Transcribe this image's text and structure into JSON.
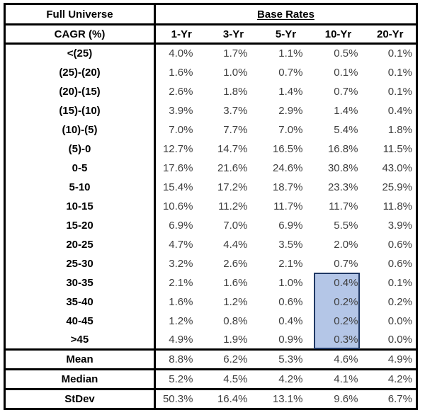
{
  "table": {
    "corner_title": "Full Universe",
    "group_header": "Base Rates",
    "row_header": "CAGR (%)",
    "col_headers": [
      "1-Yr",
      "3-Yr",
      "5-Yr",
      "10-Yr",
      "20-Yr"
    ],
    "rows": [
      {
        "label": "<(25)",
        "values": [
          "4.0%",
          "1.7%",
          "1.1%",
          "0.5%",
          "0.1%"
        ]
      },
      {
        "label": "(25)-(20)",
        "values": [
          "1.6%",
          "1.0%",
          "0.7%",
          "0.1%",
          "0.1%"
        ]
      },
      {
        "label": "(20)-(15)",
        "values": [
          "2.6%",
          "1.8%",
          "1.4%",
          "0.7%",
          "0.1%"
        ]
      },
      {
        "label": "(15)-(10)",
        "values": [
          "3.9%",
          "3.7%",
          "2.9%",
          "1.4%",
          "0.4%"
        ]
      },
      {
        "label": "(10)-(5)",
        "values": [
          "7.0%",
          "7.7%",
          "7.0%",
          "5.4%",
          "1.8%"
        ]
      },
      {
        "label": "(5)-0",
        "values": [
          "12.7%",
          "14.7%",
          "16.5%",
          "16.8%",
          "11.5%"
        ]
      },
      {
        "label": "0-5",
        "values": [
          "17.6%",
          "21.6%",
          "24.6%",
          "30.8%",
          "43.0%"
        ]
      },
      {
        "label": "5-10",
        "values": [
          "15.4%",
          "17.2%",
          "18.7%",
          "23.3%",
          "25.9%"
        ]
      },
      {
        "label": "10-15",
        "values": [
          "10.6%",
          "11.2%",
          "11.7%",
          "11.7%",
          "11.8%"
        ]
      },
      {
        "label": "15-20",
        "values": [
          "6.9%",
          "7.0%",
          "6.9%",
          "5.5%",
          "3.9%"
        ]
      },
      {
        "label": "20-25",
        "values": [
          "4.7%",
          "4.4%",
          "3.5%",
          "2.0%",
          "0.6%"
        ]
      },
      {
        "label": "25-30",
        "values": [
          "3.2%",
          "2.6%",
          "2.1%",
          "0.7%",
          "0.6%"
        ]
      },
      {
        "label": "30-35",
        "values": [
          "2.1%",
          "1.6%",
          "1.0%",
          "0.4%",
          "0.1%"
        ]
      },
      {
        "label": "35-40",
        "values": [
          "1.6%",
          "1.2%",
          "0.6%",
          "0.2%",
          "0.2%"
        ]
      },
      {
        "label": "40-45",
        "values": [
          "1.2%",
          "0.8%",
          "0.4%",
          "0.2%",
          "0.0%"
        ]
      },
      {
        "label": ">45",
        "values": [
          "4.9%",
          "1.9%",
          "0.9%",
          "0.3%",
          "0.0%"
        ]
      }
    ],
    "summary": [
      {
        "label": "Mean",
        "values": [
          "8.8%",
          "6.2%",
          "5.3%",
          "4.6%",
          "4.9%"
        ]
      },
      {
        "label": "Median",
        "values": [
          "5.2%",
          "4.5%",
          "4.2%",
          "4.1%",
          "4.2%"
        ]
      },
      {
        "label": "StDev",
        "values": [
          "50.3%",
          "16.4%",
          "13.1%",
          "9.6%",
          "6.7%"
        ]
      }
    ],
    "highlight": {
      "column": "10-Yr",
      "rows": [
        "30-35",
        "35-40",
        "40-45",
        ">45"
      ],
      "values": [
        "0.4%",
        "0.2%",
        "0.2%",
        "0.3%"
      ],
      "fill_color": "#b4c6e7",
      "border_color": "#1f3864"
    },
    "colors": {
      "grid": "#000000",
      "header_text": "#000000",
      "value_text": "#3f3f3f",
      "background": "#ffffff"
    }
  }
}
